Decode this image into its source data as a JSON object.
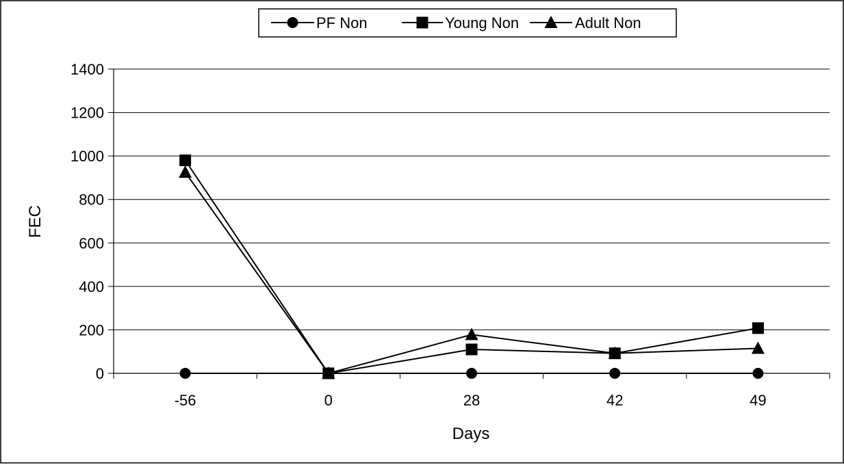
{
  "chart_data": {
    "type": "line",
    "title": "",
    "xlabel": "Days",
    "ylabel": "FEC",
    "categories": [
      "-56",
      "0",
      "28",
      "42",
      "49"
    ],
    "ylim": [
      0,
      1400
    ],
    "yticks": [
      "0",
      "200",
      "400",
      "600",
      "800",
      "1000",
      "1200",
      "1400"
    ],
    "grid": "horizontal",
    "legend_placement": "top-center",
    "series": [
      {
        "name": "PF Non",
        "marker": "circle",
        "color": "#000000",
        "values": [
          0,
          0,
          0,
          0,
          0
        ]
      },
      {
        "name": "Young Non",
        "marker": "square",
        "color": "#000000",
        "values": [
          980,
          0,
          110,
          92,
          208
        ]
      },
      {
        "name": "Adult Non",
        "marker": "triangle",
        "color": "#000000",
        "values": [
          925,
          0,
          178,
          92,
          115
        ]
      }
    ]
  }
}
